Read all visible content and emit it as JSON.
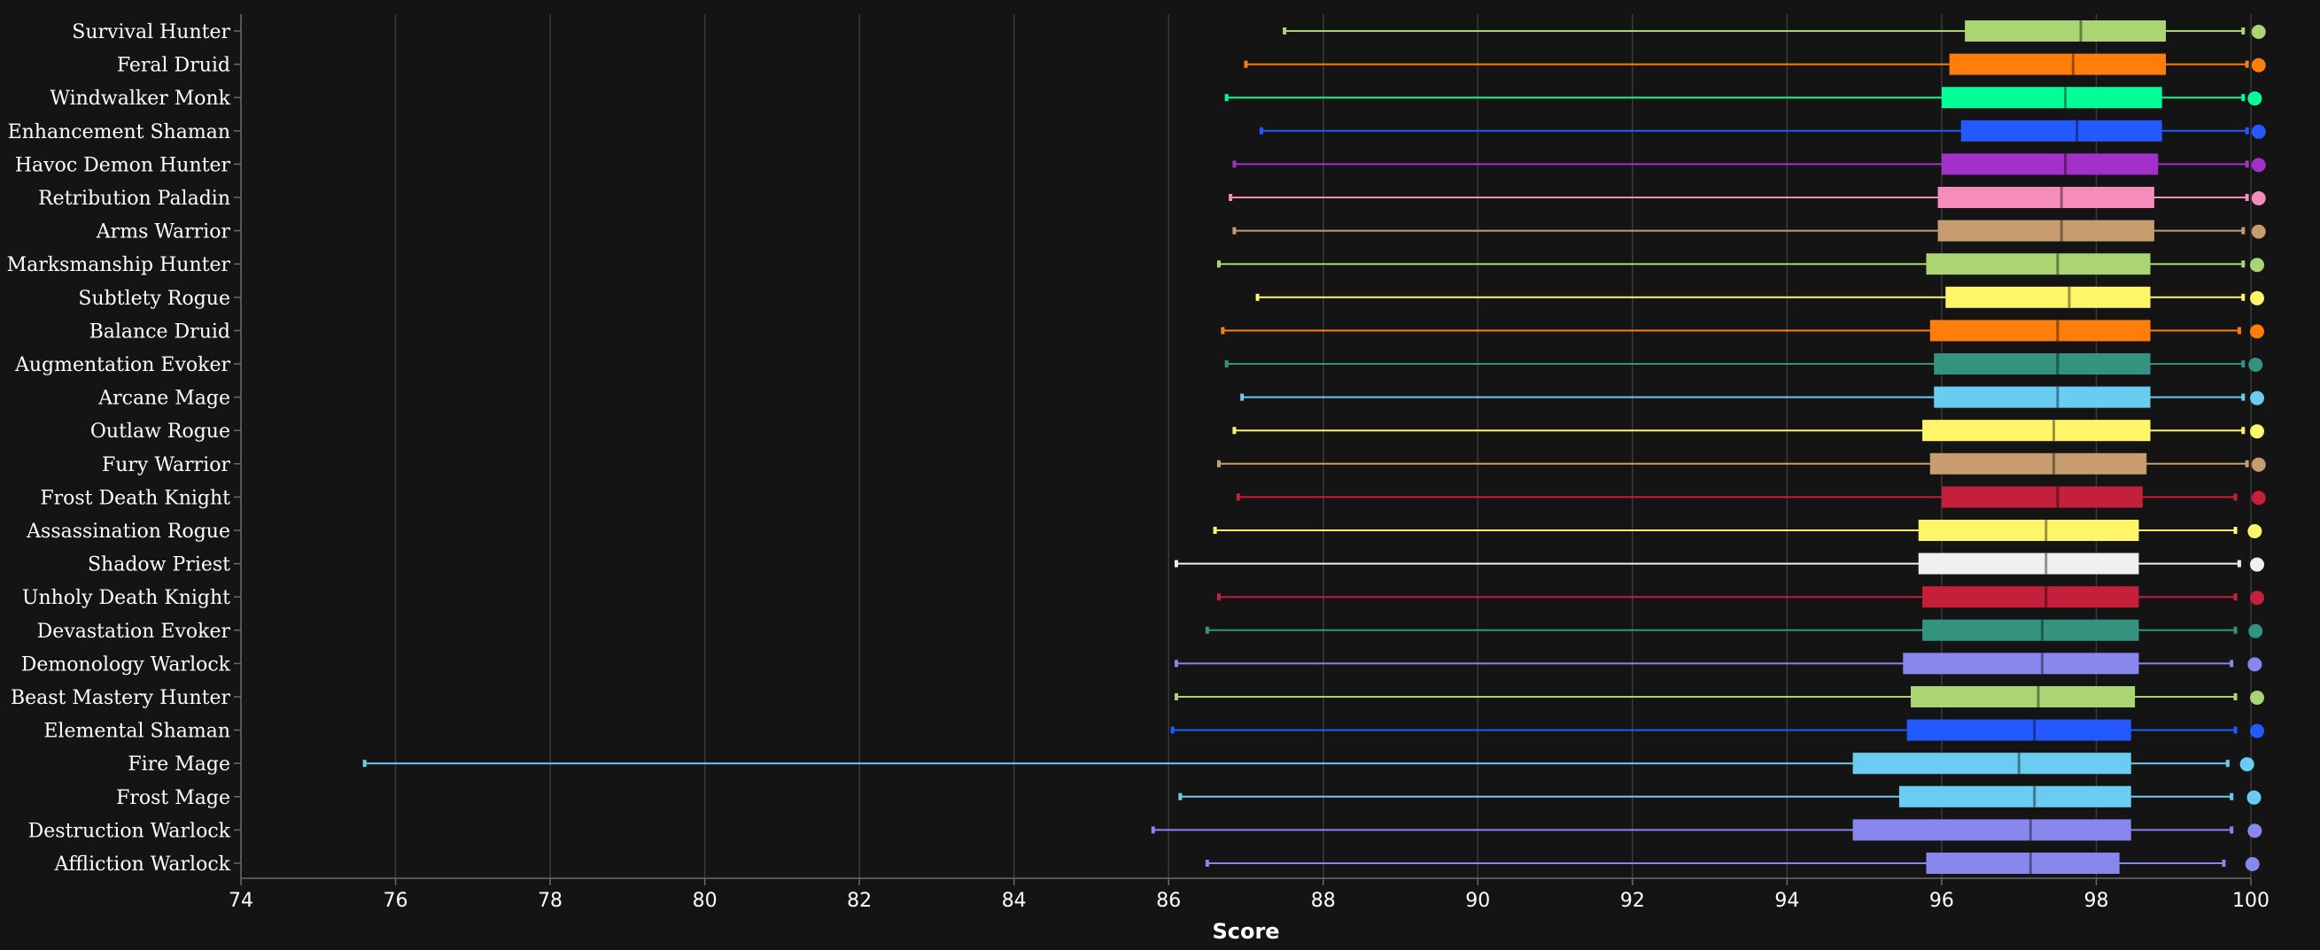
{
  "chart_data": {
    "type": "boxplot",
    "xlabel": "Score",
    "xlim": [
      74,
      100
    ],
    "xticks": [
      74,
      76,
      78,
      80,
      82,
      84,
      86,
      88,
      90,
      92,
      94,
      96,
      98,
      100
    ],
    "grid": "vertical",
    "series": [
      {
        "name": "Survival Hunter",
        "color": "#abd473",
        "min": 87.5,
        "q1": 96.3,
        "median": 97.8,
        "q3": 98.9,
        "max": 99.9,
        "top": 100.1
      },
      {
        "name": "Feral Druid",
        "color": "#ff7d0a",
        "min": 87.0,
        "q1": 96.1,
        "median": 97.7,
        "q3": 98.9,
        "max": 99.95,
        "top": 100.1
      },
      {
        "name": "Windwalker Monk",
        "color": "#00ff96",
        "min": 86.75,
        "q1": 96.0,
        "median": 97.6,
        "q3": 98.85,
        "max": 99.9,
        "top": 100.05
      },
      {
        "name": "Enhancement Shaman",
        "color": "#2459ff",
        "min": 87.2,
        "q1": 96.25,
        "median": 97.75,
        "q3": 98.85,
        "max": 99.95,
        "top": 100.1
      },
      {
        "name": "Havoc Demon Hunter",
        "color": "#a330c9",
        "min": 86.85,
        "q1": 96.0,
        "median": 97.6,
        "q3": 98.8,
        "max": 99.95,
        "top": 100.1
      },
      {
        "name": "Retribution Paladin",
        "color": "#f58cba",
        "min": 86.8,
        "q1": 95.95,
        "median": 97.55,
        "q3": 98.75,
        "max": 99.95,
        "top": 100.1
      },
      {
        "name": "Arms Warrior",
        "color": "#c79c6e",
        "min": 86.85,
        "q1": 95.95,
        "median": 97.55,
        "q3": 98.75,
        "max": 99.9,
        "top": 100.1
      },
      {
        "name": "Marksmanship Hunter",
        "color": "#abd473",
        "min": 86.65,
        "q1": 95.8,
        "median": 97.5,
        "q3": 98.7,
        "max": 99.9,
        "top": 100.08
      },
      {
        "name": "Subtlety Rogue",
        "color": "#fff569",
        "min": 87.15,
        "q1": 96.05,
        "median": 97.65,
        "q3": 98.7,
        "max": 99.9,
        "top": 100.08
      },
      {
        "name": "Balance Druid",
        "color": "#ff7d0a",
        "min": 86.7,
        "q1": 95.85,
        "median": 97.5,
        "q3": 98.7,
        "max": 99.85,
        "top": 100.08
      },
      {
        "name": "Augmentation Evoker",
        "color": "#33937f",
        "min": 86.75,
        "q1": 95.9,
        "median": 97.5,
        "q3": 98.7,
        "max": 99.9,
        "top": 100.06
      },
      {
        "name": "Arcane Mage",
        "color": "#69ccf0",
        "min": 86.95,
        "q1": 95.9,
        "median": 97.5,
        "q3": 98.7,
        "max": 99.9,
        "top": 100.08
      },
      {
        "name": "Outlaw Rogue",
        "color": "#fff569",
        "min": 86.85,
        "q1": 95.75,
        "median": 97.45,
        "q3": 98.7,
        "max": 99.9,
        "top": 100.08
      },
      {
        "name": "Fury Warrior",
        "color": "#c79c6e",
        "min": 86.65,
        "q1": 95.85,
        "median": 97.45,
        "q3": 98.65,
        "max": 99.95,
        "top": 100.1
      },
      {
        "name": "Frost Death Knight",
        "color": "#c41f3b",
        "min": 86.9,
        "q1": 96.0,
        "median": 97.5,
        "q3": 98.6,
        "max": 99.8,
        "top": 100.1
      },
      {
        "name": "Assassination Rogue",
        "color": "#fff569",
        "min": 86.6,
        "q1": 95.7,
        "median": 97.35,
        "q3": 98.55,
        "max": 99.8,
        "top": 100.05
      },
      {
        "name": "Shadow Priest",
        "color": "#f0f0f0",
        "min": 86.1,
        "q1": 95.7,
        "median": 97.35,
        "q3": 98.55,
        "max": 99.85,
        "top": 100.08
      },
      {
        "name": "Unholy Death Knight",
        "color": "#c41f3b",
        "min": 86.65,
        "q1": 95.75,
        "median": 97.35,
        "q3": 98.55,
        "max": 99.8,
        "top": 100.08
      },
      {
        "name": "Devastation Evoker",
        "color": "#33937f",
        "min": 86.5,
        "q1": 95.75,
        "median": 97.3,
        "q3": 98.55,
        "max": 99.8,
        "top": 100.06
      },
      {
        "name": "Demonology Warlock",
        "color": "#8787ed",
        "min": 86.1,
        "q1": 95.5,
        "median": 97.3,
        "q3": 98.55,
        "max": 99.75,
        "top": 100.05
      },
      {
        "name": "Beast Mastery Hunter",
        "color": "#abd473",
        "min": 86.1,
        "q1": 95.6,
        "median": 97.25,
        "q3": 98.5,
        "max": 99.8,
        "top": 100.08
      },
      {
        "name": "Elemental Shaman",
        "color": "#2459ff",
        "min": 86.05,
        "q1": 95.55,
        "median": 97.2,
        "q3": 98.45,
        "max": 99.8,
        "top": 100.08
      },
      {
        "name": "Fire Mage",
        "color": "#69ccf0",
        "min": 75.6,
        "q1": 94.85,
        "median": 97.0,
        "q3": 98.45,
        "max": 99.7,
        "top": 99.95
      },
      {
        "name": "Frost Mage",
        "color": "#69ccf0",
        "min": 86.15,
        "q1": 95.45,
        "median": 97.2,
        "q3": 98.45,
        "max": 99.75,
        "top": 100.04
      },
      {
        "name": "Destruction Warlock",
        "color": "#8787ed",
        "min": 85.8,
        "q1": 94.85,
        "median": 97.15,
        "q3": 98.45,
        "max": 99.75,
        "top": 100.05
      },
      {
        "name": "Affliction Warlock",
        "color": "#8787ed",
        "min": 86.5,
        "q1": 95.8,
        "median": 97.15,
        "q3": 98.3,
        "max": 99.65,
        "top": 100.02
      }
    ]
  }
}
